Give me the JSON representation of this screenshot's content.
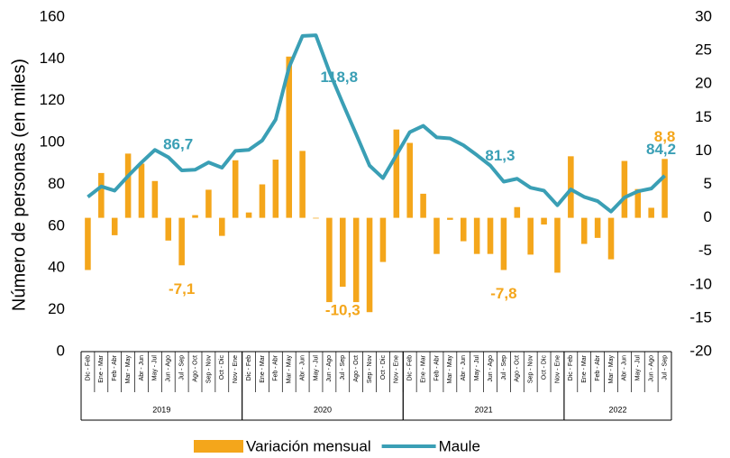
{
  "chart_data": {
    "type": "bar-line",
    "y_label": "Número de personas (en miles)",
    "category_groups": [
      {
        "label": "2019",
        "categories": [
          "Dic - Feb",
          "Ene - Mar",
          "Feb - Abr",
          "Mar - May",
          "Abr - Jun",
          "May - Jul",
          "Jun - Ago",
          "Jul - Sep",
          "Ago - Oct",
          "Sep - Nov",
          "Oct - Dic",
          "Nov - Ene"
        ]
      },
      {
        "label": "2020",
        "categories": [
          "Dic - Feb",
          "Ene - Mar",
          "Feb - Abr",
          "Mar - May",
          "Abr - Jun",
          "May - Jul",
          "Jun - Ago",
          "Jul - Sep",
          "Ago - Oct",
          "Sep - Nov",
          "Oct - Dic",
          "Nov - Ene"
        ]
      },
      {
        "label": "2021",
        "categories": [
          "Dic - Feb",
          "Ene - Mar",
          "Feb - Abr",
          "Mar - May",
          "Abr - Jun",
          "May - Jul",
          "Jun - Ago",
          "Jul - Sep",
          "Ago - Oct",
          "Sep - Nov",
          "Oct - Dic",
          "Nov - Ene"
        ]
      },
      {
        "label": "2022",
        "categories": [
          "Dic - Feb",
          "Ene - Mar",
          "Feb - Abr",
          "Mar - May",
          "Abr - Jun",
          "May - Jul",
          "Jun - Ago",
          "Jul - Sep"
        ]
      }
    ],
    "series": [
      {
        "name": "Variación mensual",
        "type": "bar",
        "axis": "y2",
        "color": "#f4a61b",
        "values": [
          -7.8,
          6.7,
          -2.6,
          9.6,
          8.1,
          5.5,
          -3.4,
          -7.1,
          0.4,
          4.2,
          -2.7,
          8.6,
          0.8,
          5.0,
          8.7,
          24.1,
          10.0,
          -0.1,
          -12.6,
          -10.3,
          -12.6,
          -14.1,
          -6.6,
          13.2,
          11.2,
          3.6,
          -5.4,
          -0.3,
          -3.5,
          -5.4,
          -5.4,
          -7.8,
          1.6,
          -5.5,
          -1.0,
          -8.2,
          9.2,
          -3.9,
          -3.0,
          -6.2,
          8.5,
          4.3,
          1.5,
          8.8
        ],
        "value_labels": [
          null,
          null,
          null,
          null,
          null,
          null,
          null,
          "-7,1",
          null,
          null,
          null,
          null,
          null,
          null,
          null,
          null,
          null,
          null,
          null,
          "-10,3",
          null,
          null,
          null,
          null,
          null,
          null,
          null,
          null,
          null,
          null,
          null,
          "-7,8",
          null,
          null,
          null,
          null,
          null,
          null,
          null,
          null,
          null,
          null,
          null,
          "8,8"
        ]
      },
      {
        "name": "Maule",
        "type": "line",
        "axis": "y",
        "color": "#3a9fb5",
        "values": [
          74,
          79,
          77,
          84,
          90.5,
          96.5,
          93,
          86.7,
          87,
          90.5,
          88,
          96,
          96.5,
          101,
          111,
          136,
          151,
          151.3,
          134,
          118.8,
          104,
          89,
          83,
          94,
          105,
          108,
          102.5,
          102,
          98.7,
          94,
          89,
          81.3,
          82.7,
          78.4,
          77,
          70,
          77.6,
          74,
          72,
          67,
          73.7,
          76.7,
          78,
          84.2
        ],
        "value_labels": [
          null,
          null,
          null,
          null,
          null,
          null,
          null,
          "86,7",
          null,
          null,
          null,
          null,
          null,
          null,
          null,
          null,
          null,
          null,
          null,
          "118,8",
          null,
          null,
          null,
          null,
          null,
          null,
          null,
          null,
          null,
          null,
          null,
          "81,3",
          null,
          null,
          null,
          null,
          null,
          null,
          null,
          null,
          null,
          null,
          null,
          "84,2"
        ]
      }
    ],
    "ylim": [
      0,
      160
    ],
    "yticks": [
      0,
      20,
      40,
      60,
      80,
      100,
      120,
      140,
      160
    ],
    "y2lim": [
      -20,
      30
    ],
    "y2ticks": [
      -20,
      -15,
      -10,
      -5,
      0,
      5,
      10,
      15,
      20,
      25,
      30
    ],
    "legend": "bottom"
  }
}
